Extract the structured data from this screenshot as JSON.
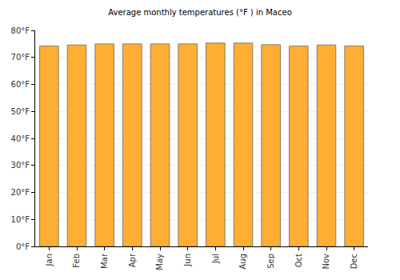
{
  "chart_data": {
    "type": "bar",
    "title": "Average monthly temperatures (°F ) in Maceo",
    "categories": [
      "Jan",
      "Feb",
      "Mar",
      "Apr",
      "May",
      "Jun",
      "Jul",
      "Aug",
      "Sep",
      "Oct",
      "Nov",
      "Dec"
    ],
    "values": [
      74.2,
      74.6,
      75,
      75,
      75,
      75,
      75.3,
      75.3,
      74.7,
      74.2,
      74.6,
      74.2
    ],
    "color": "#fdae33",
    "ylim": [
      0,
      80
    ],
    "yticks": [
      {
        "value": 0,
        "label": "0°F"
      },
      {
        "value": 10,
        "label": "10°F"
      },
      {
        "value": 20,
        "label": "20°F"
      },
      {
        "value": 30,
        "label": "30°F"
      },
      {
        "value": 40,
        "label": "40°F"
      },
      {
        "value": 50,
        "label": "50°F"
      },
      {
        "value": 60,
        "label": "60°F"
      },
      {
        "value": 70,
        "label": "70°F"
      },
      {
        "value": 80,
        "label": "80°F"
      }
    ],
    "grid": true
  }
}
